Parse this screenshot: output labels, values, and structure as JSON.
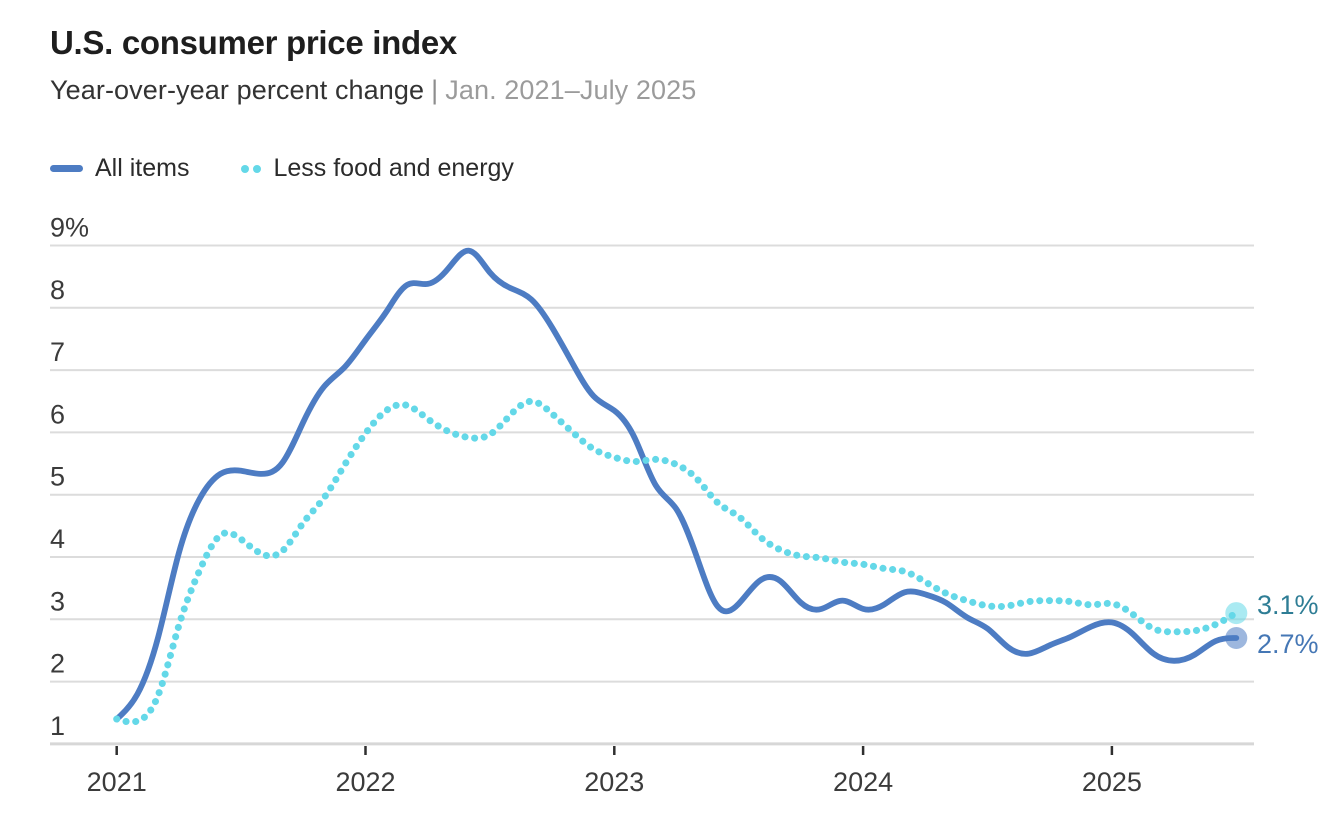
{
  "header": {
    "title": "U.S. consumer price index",
    "subtitle_measure": "Year-over-year percent change",
    "subtitle_divider": "|",
    "subtitle_range": "Jan. 2021–July 2025"
  },
  "legend": {
    "items": [
      {
        "label": "All items"
      },
      {
        "label": "Less food and energy"
      }
    ]
  },
  "chart_data": {
    "type": "line",
    "title": "U.S. consumer price index",
    "subtitle": "Year-over-year percent change | Jan. 2021–July 2025",
    "x_unit": "month",
    "x_start": "Jan. 2021",
    "x_end": "July 2025",
    "x_tick_labels": [
      "2021",
      "2022",
      "2023",
      "2024",
      "2025"
    ],
    "ylim": [
      1,
      9
    ],
    "grid": "horizontal",
    "legend_position": "top-left",
    "y_ticks": [
      {
        "value": 1,
        "label": "1"
      },
      {
        "value": 2,
        "label": "2"
      },
      {
        "value": 3,
        "label": "3"
      },
      {
        "value": 4,
        "label": "4"
      },
      {
        "value": 5,
        "label": "5"
      },
      {
        "value": 6,
        "label": "6"
      },
      {
        "value": 7,
        "label": "7"
      },
      {
        "value": 8,
        "label": "8"
      },
      {
        "value": 9,
        "label": "9%"
      }
    ],
    "series": [
      {
        "name": "All items",
        "style": "solid",
        "color": "#4d7cc3",
        "end_label": "2.7%",
        "end_label_color": "#4577b5",
        "values": [
          1.4,
          1.7,
          2.6,
          4.2,
          5.0,
          5.4,
          5.4,
          5.3,
          5.4,
          6.2,
          6.8,
          7.0,
          7.5,
          7.9,
          8.5,
          8.3,
          8.6,
          9.1,
          8.5,
          8.3,
          8.2,
          7.7,
          7.1,
          6.5,
          6.4,
          6.0,
          5.0,
          4.9,
          4.0,
          3.0,
          3.2,
          3.7,
          3.7,
          3.2,
          3.1,
          3.4,
          3.1,
          3.2,
          3.5,
          3.4,
          3.3,
          3.0,
          2.9,
          2.5,
          2.4,
          2.6,
          2.7,
          2.9,
          3.0,
          2.8,
          2.4,
          2.3,
          2.4,
          2.7,
          2.7
        ]
      },
      {
        "name": "Less food and energy",
        "style": "dotted",
        "color": "#64d8e8",
        "end_label": "3.1%",
        "end_label_color": "#2e7d95",
        "values": [
          1.4,
          1.3,
          1.6,
          3.0,
          3.8,
          4.5,
          4.3,
          4.0,
          4.0,
          4.6,
          4.9,
          5.5,
          6.0,
          6.4,
          6.5,
          6.2,
          6.0,
          5.9,
          5.9,
          6.3,
          6.6,
          6.3,
          6.0,
          5.7,
          5.6,
          5.5,
          5.6,
          5.5,
          5.3,
          4.8,
          4.7,
          4.3,
          4.1,
          4.0,
          4.0,
          3.9,
          3.9,
          3.8,
          3.8,
          3.6,
          3.4,
          3.3,
          3.2,
          3.2,
          3.3,
          3.3,
          3.3,
          3.2,
          3.3,
          3.1,
          2.8,
          2.8,
          2.8,
          2.9,
          3.1
        ]
      }
    ]
  }
}
